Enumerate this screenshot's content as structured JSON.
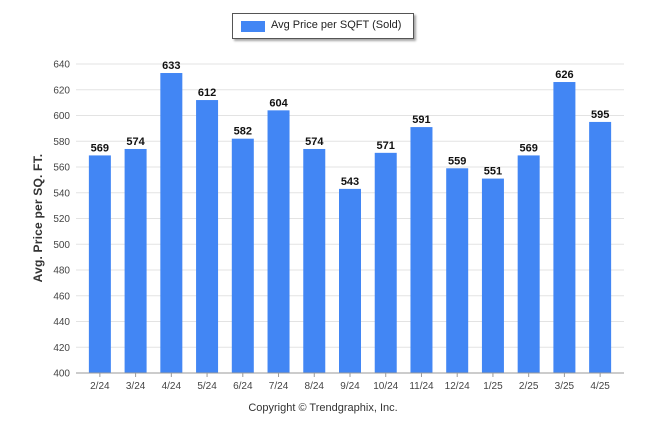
{
  "chart_data": {
    "type": "bar",
    "title": "",
    "xlabel": "",
    "ylabel": "Avg. Price per SQ. FT.",
    "ylim": [
      400,
      640
    ],
    "yticks": [
      400,
      420,
      440,
      460,
      480,
      500,
      520,
      540,
      560,
      580,
      600,
      620,
      640
    ],
    "grid": true,
    "legend_position": "top-center",
    "categories": [
      "2/24",
      "3/24",
      "4/24",
      "5/24",
      "6/24",
      "7/24",
      "8/24",
      "9/24",
      "10/24",
      "11/24",
      "12/24",
      "1/25",
      "2/25",
      "3/25",
      "4/25"
    ],
    "series": [
      {
        "name": "Avg Price per SQFT (Sold)",
        "values": [
          569,
          574,
          633,
          612,
          582,
          604,
          574,
          543,
          571,
          591,
          559,
          551,
          569,
          626,
          595
        ]
      }
    ]
  },
  "colors": {
    "bar": "#4286f4",
    "grid": "#e3e3e3",
    "axis": "#9a9a9a"
  },
  "legend": {
    "label": "Avg Price per SQFT (Sold)"
  },
  "footer": {
    "copyright": "Copyright © Trendgraphix, Inc."
  }
}
